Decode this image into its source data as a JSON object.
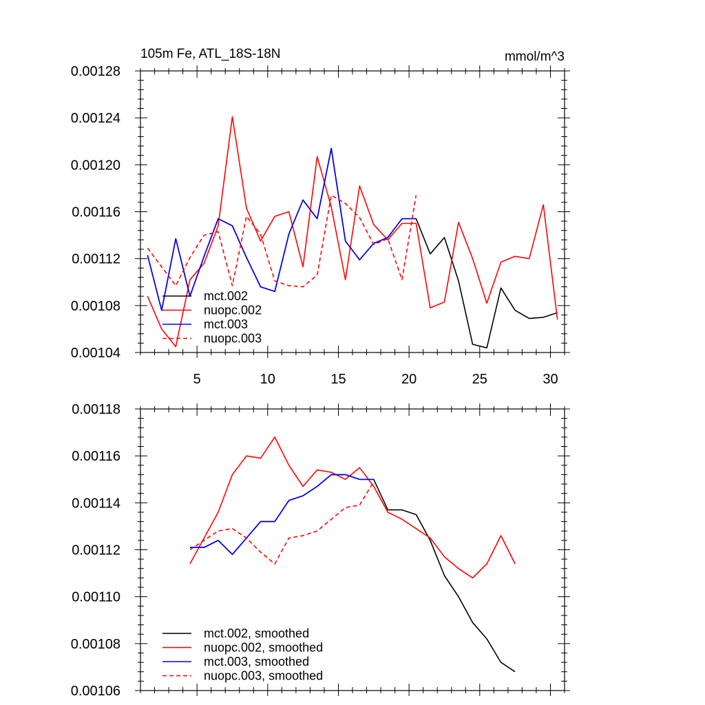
{
  "chart_data": [
    {
      "type": "line",
      "title": "105m Fe, ATL_18S-18N",
      "units": "mmol/m^3",
      "xlim": [
        1,
        31
      ],
      "ylim": [
        0.00104,
        0.00128
      ],
      "yticks": [
        0.00104,
        0.00108,
        0.00112,
        0.00116,
        0.0012,
        0.00124,
        0.00128
      ],
      "ytick_labels": [
        "0.00104",
        "0.00108",
        "0.00112",
        "0.00116",
        "0.00120",
        "0.00124",
        "0.00128"
      ],
      "xticks": [
        5,
        10,
        15,
        20,
        25,
        30
      ],
      "xtick_labels": [
        "5",
        "10",
        "15",
        "20",
        "25",
        "30"
      ],
      "legend_position": "bottom-left",
      "series": [
        {
          "name": "mct.002",
          "color": "#000000",
          "dash": "solid",
          "x": [
            1.5,
            2.5,
            3.5,
            4.5,
            5.5,
            6.5,
            7.5,
            8.5,
            9.5,
            10.5,
            11.5,
            12.5,
            13.5,
            14.5,
            15.5,
            16.5,
            17.5,
            18.5,
            19.5,
            20.5,
            21.5,
            22.5,
            23.5,
            24.5,
            25.5,
            26.5,
            27.5,
            28.5,
            29.5,
            30.5
          ],
          "values": [
            0.001123,
            0.001076,
            0.001137,
            0.001088,
            0.001122,
            0.001154,
            0.001148,
            0.001121,
            0.001096,
            0.001092,
            0.001141,
            0.00117,
            0.001154,
            0.001214,
            0.001135,
            0.001119,
            0.001133,
            0.001138,
            0.001154,
            0.001154,
            0.001124,
            0.001138,
            0.001101,
            0.001047,
            0.001044,
            0.001095,
            0.001076,
            0.001069,
            0.00107,
            0.001074
          ]
        },
        {
          "name": "nuopc.002",
          "color": "#ff0000",
          "dash": "solid",
          "x": [
            1.5,
            2.5,
            3.5,
            4.5,
            5.5,
            6.5,
            7.5,
            8.5,
            9.5,
            10.5,
            11.5,
            12.5,
            13.5,
            14.5,
            15.5,
            16.5,
            17.5,
            18.5,
            19.5,
            20.5,
            21.5,
            22.5,
            23.5,
            24.5,
            25.5,
            26.5,
            27.5,
            28.5,
            29.5,
            30.5
          ],
          "values": [
            0.001088,
            0.00106,
            0.001045,
            0.001102,
            0.001116,
            0.001148,
            0.001241,
            0.001163,
            0.001135,
            0.001156,
            0.00116,
            0.001113,
            0.001207,
            0.001164,
            0.001102,
            0.001182,
            0.001149,
            0.001136,
            0.00115,
            0.00115,
            0.001078,
            0.001083,
            0.001151,
            0.00112,
            0.001082,
            0.001117,
            0.001122,
            0.00112,
            0.001166,
            0.001068
          ]
        },
        {
          "name": "mct.003",
          "color": "#0000ff",
          "dash": "solid",
          "x": [
            1.5,
            2.5,
            3.5,
            4.5,
            5.5,
            6.5,
            7.5,
            8.5,
            9.5,
            10.5,
            11.5,
            12.5,
            13.5,
            14.5,
            15.5,
            16.5,
            17.5,
            18.5,
            19.5,
            20.5
          ],
          "values": [
            0.001123,
            0.001076,
            0.001137,
            0.001088,
            0.001122,
            0.001154,
            0.001148,
            0.001121,
            0.001096,
            0.001092,
            0.001141,
            0.00117,
            0.001154,
            0.001214,
            0.001135,
            0.001119,
            0.001133,
            0.001138,
            0.001154,
            0.001154
          ]
        },
        {
          "name": "nuopc.003",
          "color": "#ff0000",
          "dash": "dashed",
          "x": [
            1.5,
            2.5,
            3.5,
            4.5,
            5.5,
            6.5,
            7.5,
            8.5,
            9.5,
            10.5,
            11.5,
            12.5,
            13.5,
            14.5,
            15.5,
            16.5,
            17.5,
            18.5,
            19.5,
            20.5
          ],
          "values": [
            0.001129,
            0.001113,
            0.001097,
            0.001121,
            0.00114,
            0.001143,
            0.001097,
            0.001156,
            0.001141,
            0.001101,
            0.001097,
            0.001096,
            0.001106,
            0.001174,
            0.001167,
            0.001155,
            0.001132,
            0.001137,
            0.001102,
            0.001174
          ]
        }
      ]
    },
    {
      "type": "line",
      "xlim": [
        1,
        31
      ],
      "ylim": [
        0.00106,
        0.00118
      ],
      "yticks": [
        0.00106,
        0.00108,
        0.0011,
        0.00112,
        0.00114,
        0.00116,
        0.00118
      ],
      "ytick_labels": [
        "0.00106",
        "0.00108",
        "0.00110",
        "0.00112",
        "0.00114",
        "0.00116",
        "0.00118"
      ],
      "xticks": [
        5,
        10,
        15,
        20,
        25,
        30
      ],
      "legend_position": "bottom-left",
      "series": [
        {
          "name": "mct.002, smoothed",
          "color": "#000000",
          "dash": "solid",
          "x": [
            4.5,
            5.5,
            6.5,
            7.5,
            8.5,
            9.5,
            10.5,
            11.5,
            12.5,
            13.5,
            14.5,
            15.5,
            16.5,
            17.5,
            18.5,
            19.5,
            20.5,
            21.5,
            22.5,
            23.5,
            24.5,
            25.5,
            26.5,
            27.5
          ],
          "values": [
            0.001121,
            0.001121,
            0.001124,
            0.001118,
            0.001125,
            0.001132,
            0.001132,
            0.001141,
            0.001143,
            0.001147,
            0.001152,
            0.001152,
            0.00115,
            0.00115,
            0.001137,
            0.001137,
            0.001135,
            0.001124,
            0.001109,
            0.0011,
            0.001089,
            0.001082,
            0.001072,
            0.001068
          ]
        },
        {
          "name": "nuopc.002, smoothed",
          "color": "#ff0000",
          "dash": "solid",
          "x": [
            4.5,
            5.5,
            6.5,
            7.5,
            8.5,
            9.5,
            10.5,
            11.5,
            12.5,
            13.5,
            14.5,
            15.5,
            16.5,
            17.5,
            18.5,
            19.5,
            20.5,
            21.5,
            22.5,
            23.5,
            24.5,
            25.5,
            26.5,
            27.5
          ],
          "values": [
            0.001114,
            0.001125,
            0.001136,
            0.001152,
            0.00116,
            0.001159,
            0.001168,
            0.001156,
            0.001147,
            0.001154,
            0.001153,
            0.00115,
            0.001155,
            0.001147,
            0.001136,
            0.001133,
            0.001129,
            0.001125,
            0.001117,
            0.001112,
            0.001108,
            0.001114,
            0.001126,
            0.001114
          ]
        },
        {
          "name": "mct.003, smoothed",
          "color": "#0000ff",
          "dash": "solid",
          "x": [
            4.5,
            5.5,
            6.5,
            7.5,
            8.5,
            9.5,
            10.5,
            11.5,
            12.5,
            13.5,
            14.5,
            15.5,
            16.5,
            17.5
          ],
          "values": [
            0.001121,
            0.001121,
            0.001124,
            0.001118,
            0.001125,
            0.001132,
            0.001132,
            0.001141,
            0.001143,
            0.001147,
            0.001152,
            0.001152,
            0.00115,
            0.00115
          ]
        },
        {
          "name": "nuopc.003, smoothed",
          "color": "#ff0000",
          "dash": "dashed",
          "x": [
            4.5,
            5.5,
            6.5,
            7.5,
            8.5,
            9.5,
            10.5,
            11.5,
            12.5,
            13.5,
            14.5,
            15.5,
            16.5,
            17.5
          ],
          "values": [
            0.00112,
            0.001124,
            0.001128,
            0.001129,
            0.001125,
            0.001119,
            0.001114,
            0.001125,
            0.001126,
            0.001128,
            0.001133,
            0.001138,
            0.001139,
            0.001149
          ]
        }
      ]
    }
  ]
}
